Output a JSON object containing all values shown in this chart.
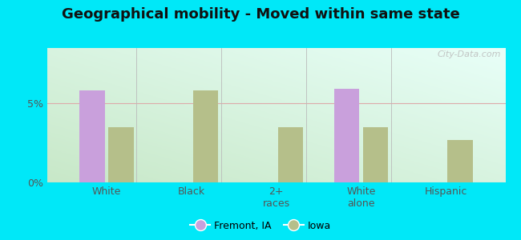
{
  "title": "Geographical mobility - Moved within same state",
  "categories": [
    "White",
    "Black",
    "2+\nraces",
    "White\nalone",
    "Hispanic"
  ],
  "fremont_values": [
    5.8,
    0,
    0,
    5.9,
    0
  ],
  "iowa_values": [
    3.5,
    5.8,
    3.5,
    3.5,
    2.7
  ],
  "fremont_color": "#c9a0dc",
  "iowa_color": "#b5bf8a",
  "bar_width": 0.3,
  "ylim": [
    0,
    8.5
  ],
  "yticks": [
    0,
    5
  ],
  "ytick_labels": [
    "0%",
    "5%"
  ],
  "bg_color_bottom_left": "#c8e8c8",
  "bg_color_top_right": "#e8fff8",
  "outer_bg": "#00e8f8",
  "legend_fremont": "Fremont, IA",
  "legend_iowa": "Iowa",
  "watermark": "City-Data.com",
  "title_fontsize": 13,
  "tick_fontsize": 9
}
